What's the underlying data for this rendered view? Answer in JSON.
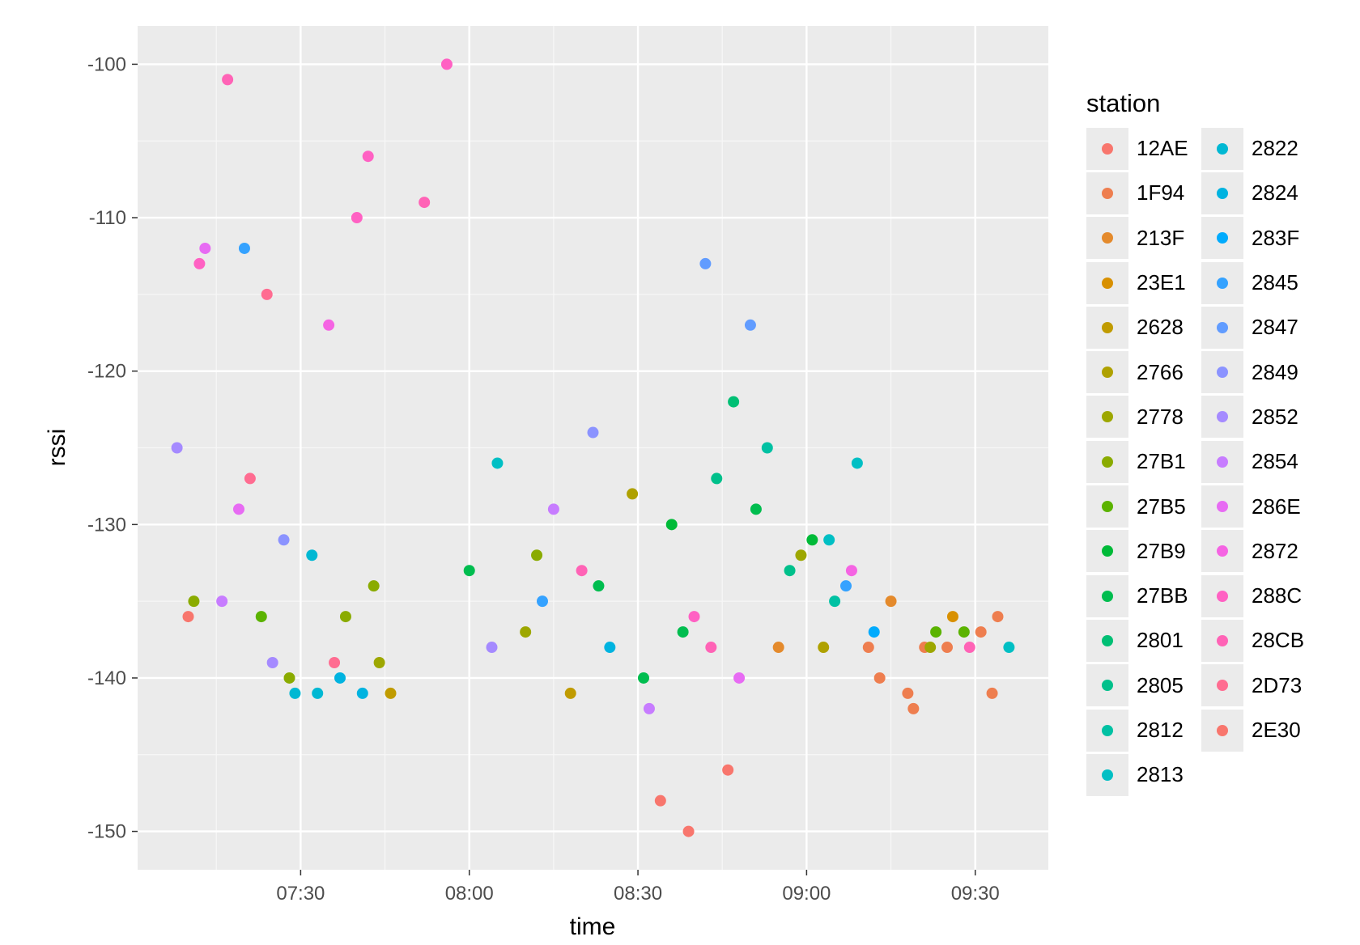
{
  "chart_data": {
    "type": "scatter",
    "xlabel": "time",
    "ylabel": "rssi",
    "x_ticks": [
      "07:30",
      "08:00",
      "08:30",
      "09:00",
      "09:30"
    ],
    "y_ticks": [
      -100,
      -110,
      -120,
      -130,
      -140,
      -150
    ],
    "xlim": [
      "07:01",
      "09:43"
    ],
    "ylim": [
      -152.5,
      -97.5
    ],
    "grid": true,
    "legend": {
      "title": "station",
      "placement": "right"
    },
    "series": [
      {
        "name": "12AE",
        "color": "#F8766D",
        "points": [
          [
            "08:34",
            -148
          ],
          [
            "08:39",
            -150
          ]
        ]
      },
      {
        "name": "1F94",
        "color": "#EE7E4F",
        "points": [
          [
            "09:11",
            -138
          ],
          [
            "09:13",
            -140
          ],
          [
            "09:18",
            -141
          ],
          [
            "09:19",
            -142
          ],
          [
            "09:21",
            -138
          ],
          [
            "09:25",
            -138
          ],
          [
            "09:31",
            -137
          ],
          [
            "09:33",
            -141
          ],
          [
            "09:34",
            -136
          ]
        ]
      },
      {
        "name": "213F",
        "color": "#E48A2C",
        "points": [
          [
            "08:55",
            -138
          ],
          [
            "09:15",
            -135
          ]
        ]
      },
      {
        "name": "23E1",
        "color": "#D89000",
        "points": [
          [
            "09:26",
            -136
          ]
        ]
      },
      {
        "name": "2628",
        "color": "#C09B00",
        "points": [
          [
            "07:46",
            -141
          ],
          [
            "08:18",
            -141
          ]
        ]
      },
      {
        "name": "2766",
        "color": "#AFA100",
        "points": [
          [
            "08:29",
            -128
          ],
          [
            "09:03",
            -138
          ]
        ]
      },
      {
        "name": "2778",
        "color": "#9DA700",
        "points": [
          [
            "07:44",
            -139
          ],
          [
            "08:10",
            -137
          ],
          [
            "08:59",
            -132
          ],
          [
            "09:22",
            -138
          ]
        ]
      },
      {
        "name": "27B1",
        "color": "#8AAB00",
        "points": [
          [
            "07:11",
            -135
          ],
          [
            "07:28",
            -140
          ],
          [
            "07:38",
            -136
          ],
          [
            "07:43",
            -134
          ],
          [
            "08:12",
            -132
          ]
        ]
      },
      {
        "name": "27B5",
        "color": "#5BB300",
        "points": [
          [
            "07:23",
            -136
          ],
          [
            "09:23",
            -137
          ],
          [
            "09:28",
            -137
          ]
        ]
      },
      {
        "name": "27B9",
        "color": "#00BA38",
        "points": [
          [
            "08:36",
            -130
          ],
          [
            "09:01",
            -131
          ]
        ]
      },
      {
        "name": "27BB",
        "color": "#00BD4F",
        "points": [
          [
            "08:00",
            -133
          ],
          [
            "08:23",
            -134
          ],
          [
            "08:31",
            -140
          ],
          [
            "08:38",
            -137
          ],
          [
            "08:51",
            -129
          ]
        ]
      },
      {
        "name": "2801",
        "color": "#00BF74",
        "points": [
          [
            "08:47",
            -122
          ]
        ]
      },
      {
        "name": "2805",
        "color": "#00C08B",
        "points": [
          [
            "08:44",
            -127
          ],
          [
            "08:57",
            -133
          ]
        ]
      },
      {
        "name": "2812",
        "color": "#00C1A3",
        "points": [
          [
            "08:53",
            -125
          ],
          [
            "09:05",
            -135
          ]
        ]
      },
      {
        "name": "2813",
        "color": "#00BFC4",
        "points": [
          [
            "08:05",
            -126
          ],
          [
            "09:09",
            -126
          ],
          [
            "09:04",
            -131
          ],
          [
            "09:36",
            -138
          ]
        ]
      },
      {
        "name": "2822",
        "color": "#00B8D3",
        "points": [
          [
            "07:29",
            -141
          ],
          [
            "07:32",
            -132
          ],
          [
            "07:33",
            -141
          ]
        ]
      },
      {
        "name": "2824",
        "color": "#00B3E0",
        "points": [
          [
            "07:37",
            -140
          ],
          [
            "07:41",
            -141
          ],
          [
            "08:25",
            -138
          ]
        ]
      },
      {
        "name": "283F",
        "color": "#00ABFD",
        "points": [
          [
            "09:12",
            -137
          ]
        ]
      },
      {
        "name": "2845",
        "color": "#35A2FF",
        "points": [
          [
            "07:20",
            -112
          ],
          [
            "08:13",
            -135
          ],
          [
            "09:07",
            -134
          ]
        ]
      },
      {
        "name": "2847",
        "color": "#619CFF",
        "points": [
          [
            "08:42",
            -113
          ],
          [
            "08:50",
            -117
          ]
        ]
      },
      {
        "name": "2849",
        "color": "#8B93FF",
        "points": [
          [
            "07:27",
            -131
          ],
          [
            "08:22",
            -124
          ]
        ]
      },
      {
        "name": "2852",
        "color": "#A58AFF",
        "points": [
          [
            "07:08",
            -125
          ],
          [
            "08:04",
            -138
          ],
          [
            "07:25",
            -139
          ]
        ]
      },
      {
        "name": "2854",
        "color": "#C77CFF",
        "points": [
          [
            "07:16",
            -135
          ],
          [
            "08:15",
            -129
          ],
          [
            "08:32",
            -142
          ]
        ]
      },
      {
        "name": "286E",
        "color": "#E76BF3",
        "points": [
          [
            "07:19",
            -129
          ],
          [
            "07:13",
            -112
          ],
          [
            "08:48",
            -140
          ]
        ]
      },
      {
        "name": "2872",
        "color": "#F564E3",
        "points": [
          [
            "07:35",
            -117
          ],
          [
            "09:08",
            -133
          ]
        ]
      },
      {
        "name": "288C",
        "color": "#FF61C3",
        "points": [
          [
            "07:12",
            -113
          ],
          [
            "07:40",
            -110
          ],
          [
            "07:42",
            -106
          ],
          [
            "07:56",
            -100
          ],
          [
            "08:40",
            -136
          ]
        ]
      },
      {
        "name": "28CB",
        "color": "#FF63B6",
        "points": [
          [
            "07:17",
            -101
          ],
          [
            "07:52",
            -109
          ],
          [
            "08:20",
            -133
          ],
          [
            "08:43",
            -138
          ],
          [
            "09:29",
            -138
          ]
        ]
      },
      {
        "name": "2D73",
        "color": "#FF6C91",
        "points": [
          [
            "07:21",
            -127
          ],
          [
            "07:24",
            -115
          ],
          [
            "07:36",
            -139
          ]
        ]
      },
      {
        "name": "2E30",
        "color": "#F8766D",
        "points": [
          [
            "07:10",
            -136
          ],
          [
            "08:46",
            -146
          ]
        ]
      }
    ]
  }
}
